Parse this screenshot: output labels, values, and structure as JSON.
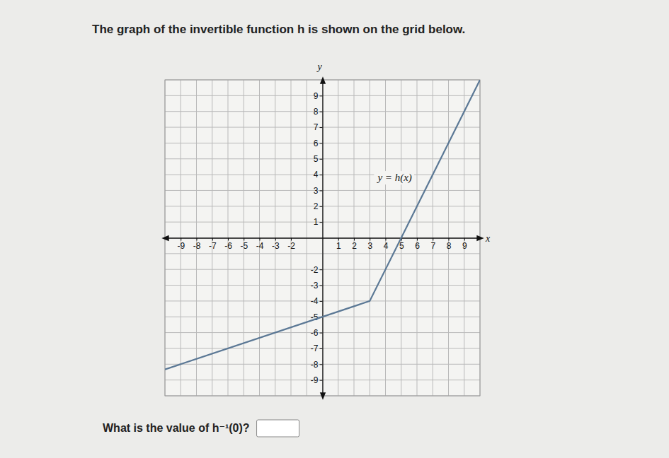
{
  "chart_data": {
    "type": "line",
    "title": "The graph of the invertible function h is shown on the grid below.",
    "x_label": "x",
    "y_label": "y",
    "annotation": "y = h(x)",
    "question": "What is the value of h⁻¹(0)?",
    "x": [
      -10,
      3,
      10
    ],
    "series": [
      {
        "name": "h",
        "color": "#5b7895",
        "values": [
          -8.33,
          -4,
          10
        ]
      }
    ],
    "xlim": [
      -10,
      10
    ],
    "ylim": [
      -10,
      10
    ],
    "xticks": [
      -9,
      -8,
      -7,
      -6,
      -5,
      -4,
      -3,
      -2,
      1,
      2,
      3,
      4,
      5,
      6,
      7,
      8,
      9
    ],
    "yticks": [
      -9,
      -8,
      -7,
      -6,
      -5,
      -4,
      -3,
      -2,
      1,
      2,
      3,
      4,
      5,
      6,
      7,
      8,
      9
    ],
    "grid": true,
    "tick_labels": true
  }
}
